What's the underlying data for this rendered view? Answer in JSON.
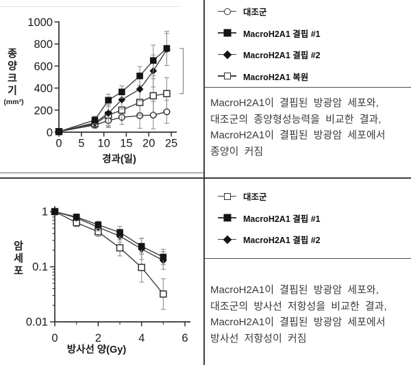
{
  "page": {
    "background": "#ffffff",
    "table_line_color": "#3a3a3a",
    "axis_color": "#2e2e2e",
    "series_line_color": "#3c3c3c",
    "error_bar_color": "#8f8f8f",
    "filled_marker_color": "#141414"
  },
  "chart_data": [
    {
      "type": "line",
      "title": "",
      "xlabel": "경과(일)",
      "ylabel": "종양 크기 (mm³)",
      "ylabel_stack": [
        "종",
        "양",
        "크",
        "기",
        "(mm³)"
      ],
      "xlim": [
        0,
        25
      ],
      "ylim": [
        0,
        1000
      ],
      "x_ticks": [
        0,
        5,
        10,
        15,
        20,
        25
      ],
      "y_ticks": [
        0,
        200,
        400,
        600,
        800,
        1000
      ],
      "grid": false,
      "legend_position": "separate-panel-right",
      "x": [
        0,
        8,
        11,
        14,
        18,
        21,
        24
      ],
      "series": [
        {
          "name": "대조군",
          "marker": "open-circle",
          "values": [
            5,
            65,
            105,
            135,
            150,
            155,
            185
          ],
          "err": [
            4,
            30,
            55,
            65,
            115,
            125,
            105
          ]
        },
        {
          "name": "MacroH2A1 결핍 #1",
          "marker": "filled-square",
          "values": [
            5,
            110,
            290,
            365,
            510,
            650,
            760
          ],
          "err": [
            4,
            35,
            55,
            55,
            85,
            140,
            155
          ]
        },
        {
          "name": "MacroH2A1 결핍 #2",
          "marker": "filled-diamond",
          "values": [
            5,
            85,
            172,
            295,
            390,
            555,
            750
          ],
          "err": [
            4,
            30,
            130,
            85,
            105,
            145,
            145
          ]
        },
        {
          "name": "MacroH2A1 복원",
          "marker": "open-square",
          "values": [
            5,
            75,
            155,
            200,
            270,
            330,
            350
          ],
          "err": [
            4,
            30,
            95,
            85,
            115,
            155,
            145
          ]
        }
      ],
      "bracket": {
        "from": 350,
        "to": 760
      }
    },
    {
      "type": "line",
      "title": "",
      "xlabel": "방사선 양(Gy)",
      "ylabel": "암 세포",
      "ylabel_stack": [
        "암",
        "세",
        "포"
      ],
      "y_scale": "log",
      "xlim": [
        0,
        6
      ],
      "ylim": [
        0.01,
        1
      ],
      "x_ticks": [
        0,
        2,
        4,
        6
      ],
      "y_tick_labels": [
        "1",
        "0.1",
        "0.01"
      ],
      "y_tick_values": [
        1,
        0.1,
        0.01
      ],
      "grid": false,
      "legend_position": "separate-panel-right",
      "x": [
        0,
        1,
        2,
        3,
        4,
        5
      ],
      "series": [
        {
          "name": "대조군",
          "marker": "open-square",
          "values": [
            1.0,
            0.63,
            0.43,
            0.22,
            0.097,
            0.032
          ],
          "err_factor": [
            1.0,
            1.18,
            1.22,
            1.4,
            1.85,
            1.9
          ]
        },
        {
          "name": "MacroH2A1 결핍 #1",
          "marker": "filled-square",
          "values": [
            1.0,
            0.8,
            0.575,
            0.42,
            0.235,
            0.15
          ],
          "err_factor": [
            1.02,
            1.12,
            1.16,
            1.28,
            1.4,
            1.38
          ]
        },
        {
          "name": "MacroH2A1 결핍 #2",
          "marker": "filled-diamond",
          "values": [
            1.0,
            0.77,
            0.52,
            0.36,
            0.21,
            0.13
          ],
          "err_factor": [
            1.02,
            1.12,
            1.16,
            1.3,
            1.55,
            1.45
          ]
        }
      ]
    }
  ],
  "top_row": {
    "legend": {
      "items": [
        {
          "marker": "open-circle",
          "label": "대조군"
        },
        {
          "marker": "filled-square",
          "label": "MacroH2A1 결핍 #1"
        },
        {
          "marker": "filled-diamond",
          "label": "MacroH2A1 결핍 #2"
        },
        {
          "marker": "open-square",
          "label": "MacroH2A1 복원"
        }
      ]
    },
    "description_lines": [
      "MacroH2A1이 결핍된 방광암 세포와,",
      "대조군의 종양형성능력을 비교한 결과,",
      "MacroH2A1이 결핍된 방광암 세포에서",
      "종양이 커짐"
    ]
  },
  "bottom_row": {
    "legend": {
      "items": [
        {
          "marker": "open-square",
          "label": "대조군"
        },
        {
          "marker": "filled-square",
          "label": "MacroH2A1 결핍 #1"
        },
        {
          "marker": "filled-diamond",
          "label": "MacroH2A1 결핍 #2"
        }
      ]
    },
    "description_lines": [
      "MacroH2A1이 결핍된 방광암 세포와,",
      "대조군의 방사선 저항성을 비교한 결과,",
      "MacroH2A1이 결핍된 방광암 세포에서",
      "방사선 저항성이 커짐"
    ]
  }
}
